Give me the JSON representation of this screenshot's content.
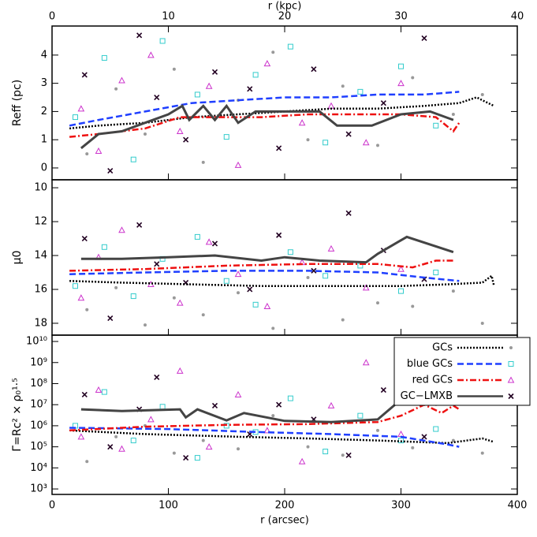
{
  "chart_data": [
    {
      "type": "scatter",
      "ylabel": "Reff (pc)",
      "x2label": "r (kpc)",
      "x2lim": [
        0,
        40
      ],
      "x2ticks": [
        0,
        10,
        20,
        30,
        40
      ],
      "xlim": [
        0,
        400
      ],
      "ylim": [
        -0.42,
        5.03
      ],
      "yticks": [
        0,
        1,
        2,
        3,
        4
      ],
      "series": [
        {
          "name": "GCs",
          "color": "#000000",
          "marker_color": "#999999",
          "marker": "circle",
          "line_style": "dotted",
          "x": [
            30,
            55,
            80,
            105,
            130,
            160,
            190,
            220,
            250,
            280,
            310,
            345,
            370
          ],
          "values": [
            0.5,
            2.8,
            1.2,
            3.5,
            0.2,
            2.4,
            4.1,
            1.0,
            2.9,
            0.8,
            3.2,
            1.9,
            2.6
          ],
          "line_x": [
            15,
            40,
            80,
            120,
            160,
            200,
            240,
            280,
            320,
            350,
            365,
            380
          ],
          "line_values": [
            1.4,
            1.5,
            1.6,
            1.8,
            1.9,
            2.0,
            2.1,
            2.1,
            2.2,
            2.3,
            2.5,
            2.2
          ]
        },
        {
          "name": "blue GCs",
          "color": "#1f3fff",
          "marker_color": "#33cccc",
          "marker": "square",
          "line_style": "dashed",
          "x": [
            20,
            45,
            70,
            95,
            125,
            150,
            175,
            205,
            235,
            265,
            300,
            330
          ],
          "values": [
            1.8,
            3.9,
            0.3,
            4.5,
            2.6,
            1.1,
            3.3,
            4.3,
            0.9,
            2.7,
            3.6,
            1.5
          ],
          "line_x": [
            15,
            40,
            80,
            120,
            160,
            200,
            240,
            280,
            320,
            350
          ],
          "line_values": [
            1.5,
            1.7,
            2.0,
            2.3,
            2.4,
            2.5,
            2.5,
            2.6,
            2.6,
            2.7
          ]
        },
        {
          "name": "red GCs",
          "color": "#ee1111",
          "marker_color": "#cc33cc",
          "marker": "triangle",
          "line_style": "dashdot",
          "x": [
            25,
            40,
            60,
            85,
            110,
            135,
            160,
            185,
            215,
            240,
            270,
            300
          ],
          "values": [
            2.1,
            0.6,
            3.1,
            4.0,
            1.3,
            2.9,
            0.1,
            3.7,
            1.6,
            2.2,
            0.9,
            3.0
          ],
          "line_x": [
            15,
            40,
            80,
            110,
            140,
            180,
            220,
            260,
            300,
            330,
            345,
            350
          ],
          "line_values": [
            1.1,
            1.2,
            1.4,
            1.8,
            1.8,
            1.8,
            1.9,
            1.9,
            1.9,
            1.8,
            1.3,
            1.6
          ]
        },
        {
          "name": "GC−LMXB",
          "color": "#444444",
          "marker_color": "#220022",
          "marker": "cross",
          "line_style": "solid",
          "x": [
            28,
            50,
            75,
            90,
            115,
            140,
            170,
            195,
            225,
            255,
            285,
            320
          ],
          "values": [
            3.3,
            -0.1,
            4.7,
            2.5,
            1.0,
            3.4,
            2.8,
            0.7,
            3.5,
            1.2,
            2.3,
            4.6
          ],
          "line_x": [
            25,
            40,
            60,
            80,
            100,
            112,
            118,
            130,
            140,
            150,
            160,
            175,
            200,
            230,
            245,
            275,
            300,
            325,
            345
          ],
          "line_values": [
            0.7,
            1.2,
            1.3,
            1.6,
            1.9,
            2.2,
            1.7,
            2.2,
            1.7,
            2.2,
            1.6,
            2.0,
            2.0,
            2.0,
            1.5,
            1.5,
            1.9,
            2.0,
            1.7
          ]
        }
      ]
    },
    {
      "type": "scatter",
      "ylabel": "μ0",
      "xlim": [
        0,
        400
      ],
      "ylim": [
        18.7,
        9.53
      ],
      "yticks": [
        10,
        12,
        14,
        16,
        18
      ],
      "series": [
        {
          "name": "GCs",
          "color": "#000000",
          "marker_color": "#999999",
          "marker": "circle",
          "line_style": "dotted",
          "x": [
            30,
            55,
            80,
            105,
            130,
            160,
            190,
            220,
            250,
            280,
            310,
            345,
            370
          ],
          "values": [
            17.2,
            15.9,
            18.1,
            16.5,
            17.5,
            16.2,
            18.3,
            15.3,
            17.8,
            16.8,
            17.0,
            16.1,
            18.0
          ],
          "line_x": [
            15,
            60,
            120,
            180,
            240,
            300,
            340,
            370,
            378,
            380
          ],
          "line_values": [
            15.5,
            15.6,
            15.7,
            15.8,
            15.8,
            15.8,
            15.7,
            15.6,
            15.2,
            15.8
          ]
        },
        {
          "name": "blue GCs",
          "color": "#1f3fff",
          "marker_color": "#33cccc",
          "marker": "square",
          "line_style": "dashed",
          "x": [
            20,
            45,
            70,
            95,
            125,
            150,
            175,
            205,
            235,
            265,
            300,
            330
          ],
          "values": [
            15.8,
            13.5,
            16.4,
            14.2,
            12.9,
            15.5,
            16.9,
            13.8,
            15.2,
            14.6,
            16.1,
            15.0
          ],
          "line_x": [
            15,
            80,
            150,
            220,
            280,
            320,
            350
          ],
          "line_values": [
            15.1,
            15.0,
            14.9,
            14.9,
            15.0,
            15.3,
            15.5
          ]
        },
        {
          "name": "red GCs",
          "color": "#ee1111",
          "marker_color": "#cc33cc",
          "marker": "triangle",
          "line_style": "dashdot",
          "x": [
            25,
            40,
            60,
            85,
            110,
            135,
            160,
            185,
            215,
            240,
            270,
            300
          ],
          "values": [
            16.5,
            14.1,
            12.5,
            15.7,
            16.8,
            13.2,
            15.1,
            17.0,
            14.4,
            13.6,
            15.9,
            14.8
          ],
          "line_x": [
            15,
            80,
            150,
            220,
            280,
            310,
            330,
            345
          ],
          "line_values": [
            14.9,
            14.8,
            14.6,
            14.5,
            14.5,
            14.7,
            14.3,
            14.3
          ]
        },
        {
          "name": "GC−LMXB",
          "color": "#444444",
          "marker_color": "#220022",
          "marker": "cross",
          "line_style": "solid",
          "x": [
            28,
            50,
            75,
            90,
            115,
            140,
            170,
            195,
            225,
            255,
            285,
            320
          ],
          "values": [
            13.0,
            17.7,
            12.2,
            14.5,
            15.6,
            13.3,
            16.0,
            12.8,
            14.9,
            11.5,
            13.7,
            15.4
          ],
          "line_x": [
            25,
            60,
            100,
            140,
            180,
            200,
            230,
            270,
            280,
            305,
            345
          ],
          "line_values": [
            14.2,
            14.2,
            14.1,
            14.0,
            14.3,
            14.1,
            14.3,
            14.4,
            13.9,
            12.9,
            13.8
          ]
        }
      ]
    },
    {
      "type": "scatter",
      "ylabel": "Γ=Rc² × ρ₀¹·⁵",
      "log": true,
      "legend": "upper right",
      "xlabel": "r (arcsec)",
      "xlim": [
        0,
        400
      ],
      "xticks": [
        0,
        100,
        200,
        300,
        400
      ],
      "ylim": [
        550,
        20000000000
      ],
      "yticks": [
        {
          "value": 1000,
          "label": "10³"
        },
        {
          "value": 10000,
          "label": "10⁴"
        },
        {
          "value": 100000,
          "label": "10⁵"
        },
        {
          "value": 1000000,
          "label": "10⁶"
        },
        {
          "value": 10000000,
          "label": "10⁷"
        },
        {
          "value": 100000000,
          "label": "10⁸"
        },
        {
          "value": 1000000000,
          "label": "10⁹"
        },
        {
          "value": 10000000000,
          "label": "10¹⁰"
        }
      ],
      "series": [
        {
          "name": "GCs",
          "color": "#000000",
          "marker_color": "#999999",
          "marker": "circle",
          "line_style": "dotted",
          "x": [
            30,
            55,
            80,
            105,
            130,
            160,
            190,
            220,
            250,
            280,
            310,
            345,
            370
          ],
          "values": [
            20000,
            300000,
            1000000,
            50000,
            200000,
            80000,
            3000000,
            100000,
            40000,
            600000,
            90000,
            200000,
            50000
          ],
          "line_x": [
            15,
            80,
            160,
            220,
            280,
            340,
            370,
            380
          ],
          "line_values": [
            600000,
            400000,
            300000,
            250000,
            200000,
            150000,
            250000,
            170000
          ]
        },
        {
          "name": "blue GCs",
          "color": "#1f3fff",
          "marker_color": "#33cccc",
          "marker": "square",
          "line_style": "dashed",
          "x": [
            20,
            45,
            70,
            95,
            125,
            150,
            175,
            205,
            235,
            265,
            300,
            330
          ],
          "values": [
            1000000,
            40000000,
            200000,
            8000000,
            30000,
            1000000,
            500000,
            20000000,
            60000,
            3000000,
            200000,
            700000
          ],
          "line_x": [
            15,
            100,
            180,
            240,
            300,
            340,
            350
          ],
          "line_values": [
            800000,
            700000,
            500000,
            400000,
            300000,
            130000,
            100000
          ]
        },
        {
          "name": "red GCs",
          "color": "#ee1111",
          "marker_color": "#cc33cc",
          "marker": "triangle",
          "line_style": "dashdot",
          "x": [
            25,
            40,
            60,
            85,
            110,
            135,
            160,
            185,
            215,
            240,
            270,
            300
          ],
          "values": [
            300000,
            50000000,
            80000,
            2000000,
            400000000,
            100000,
            30000000,
            600000,
            20000,
            9000000,
            1000000000,
            400000
          ],
          "line_x": [
            15,
            80,
            150,
            220,
            280,
            300,
            320,
            335,
            345,
            350
          ],
          "line_values": [
            600000,
            900000,
            1100000,
            1200000,
            1500000,
            3000000,
            10000000,
            4000000,
            9000000,
            6000000
          ]
        },
        {
          "name": "GC−LMXB",
          "color": "#444444",
          "marker_color": "#220022",
          "marker": "cross",
          "line_style": "solid",
          "x": [
            28,
            50,
            75,
            90,
            115,
            140,
            170,
            195,
            225,
            255,
            285,
            320
          ],
          "values": [
            30000000,
            100000,
            6000000,
            200000000,
            30000,
            9000000,
            400000,
            10000000,
            2000000,
            40000,
            50000000,
            300000
          ],
          "line_x": [
            25,
            60,
            110,
            115,
            125,
            150,
            165,
            200,
            240,
            280,
            305,
            330,
            345
          ],
          "line_values": [
            6000000,
            5000000,
            6000000,
            2500000,
            6000000,
            1800000,
            4000000,
            1700000,
            1500000,
            2000000,
            30000000,
            10000000,
            13000000
          ]
        }
      ]
    }
  ]
}
